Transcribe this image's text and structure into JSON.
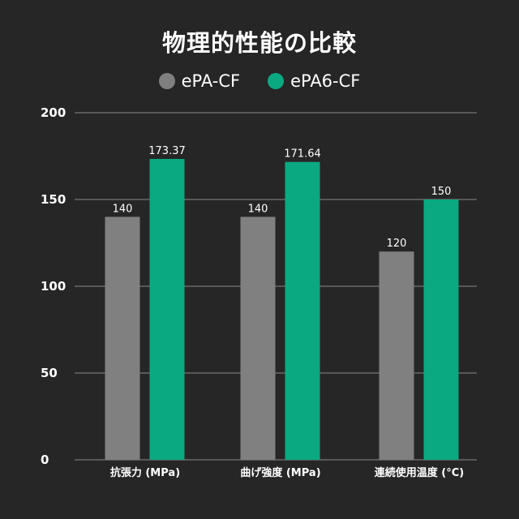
{
  "chart_data": {
    "type": "bar",
    "title": "物理的性能の比較",
    "categories": [
      "抗張力 (MPa)",
      "曲げ強度 (MPa)",
      "連続使用温度 (°C)"
    ],
    "series": [
      {
        "name": "ePA-CF",
        "values": [
          140,
          140,
          120
        ],
        "labels": [
          "140",
          "140",
          "120"
        ],
        "color": "#808080"
      },
      {
        "name": "ePA6-CF",
        "values": [
          173.37,
          171.64,
          150
        ],
        "labels": [
          "173.37",
          "171.64",
          "150"
        ],
        "color": "#0aa982"
      }
    ],
    "yticks": [
      "0",
      "50",
      "100",
      "150",
      "200"
    ],
    "ylim": [
      0,
      200
    ],
    "grid": true,
    "legend": "top-center"
  }
}
